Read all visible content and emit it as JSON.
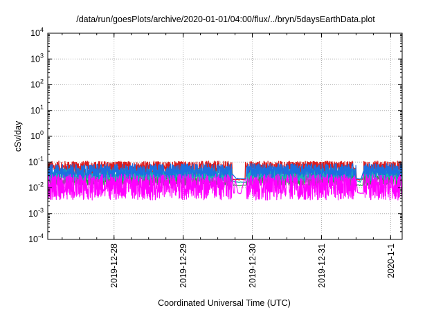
{
  "chart_data": {
    "type": "line",
    "title": "/data/run/goesPlots/archive/2020-01-01/04:00/flux/../bryn/5daysEarthData.plot",
    "xlabel": "Coordinated Universal Time (UTC)",
    "ylabel": "cSv/day",
    "yscale": "log",
    "ylim": [
      0.0001,
      10000
    ],
    "yticks": [
      {
        "value": 10000,
        "base": "10",
        "exp": "4"
      },
      {
        "value": 1000,
        "base": "10",
        "exp": "3"
      },
      {
        "value": 100,
        "base": "10",
        "exp": "2"
      },
      {
        "value": 10,
        "base": "10",
        "exp": "1"
      },
      {
        "value": 1,
        "base": "10",
        "exp": "0"
      },
      {
        "value": 0.1,
        "base": "10",
        "exp": "-1"
      },
      {
        "value": 0.01,
        "base": "10",
        "exp": "-2"
      },
      {
        "value": 0.001,
        "base": "10",
        "exp": "-3"
      },
      {
        "value": 0.0001,
        "base": "10",
        "exp": "-4"
      }
    ],
    "xlim": [
      "2019-12-27T01:00",
      "2020-01-01T04:00"
    ],
    "xticks": [
      {
        "value": "2019-12-28T00:00",
        "label": "2019-12-28"
      },
      {
        "value": "2019-12-29T00:00",
        "label": "2019-12-29"
      },
      {
        "value": "2019-12-30T00:00",
        "label": "2019-12-30"
      },
      {
        "value": "2019-12-31T00:00",
        "label": "2019-12-31"
      },
      {
        "value": "2020-01-01T00:00",
        "label": "2020-1-1"
      }
    ],
    "grid": true,
    "legend": "none",
    "series": [
      {
        "color": "#dd1c1c",
        "level": 0.058,
        "spread": 0.55,
        "dip": 0.02
      },
      {
        "color": "#1fa83a",
        "level": 0.022,
        "spread": 0.5,
        "dip": 0.012
      },
      {
        "color": "#19b5b5",
        "level": 0.032,
        "spread": 0.5,
        "dip": 0.016
      },
      {
        "color": "#1b6fe0",
        "level": 0.046,
        "spread": 0.55,
        "dip": 0.022
      },
      {
        "color": "#ff00ff",
        "level": 0.0095,
        "spread": 0.9,
        "dip": 0.006
      }
    ]
  }
}
